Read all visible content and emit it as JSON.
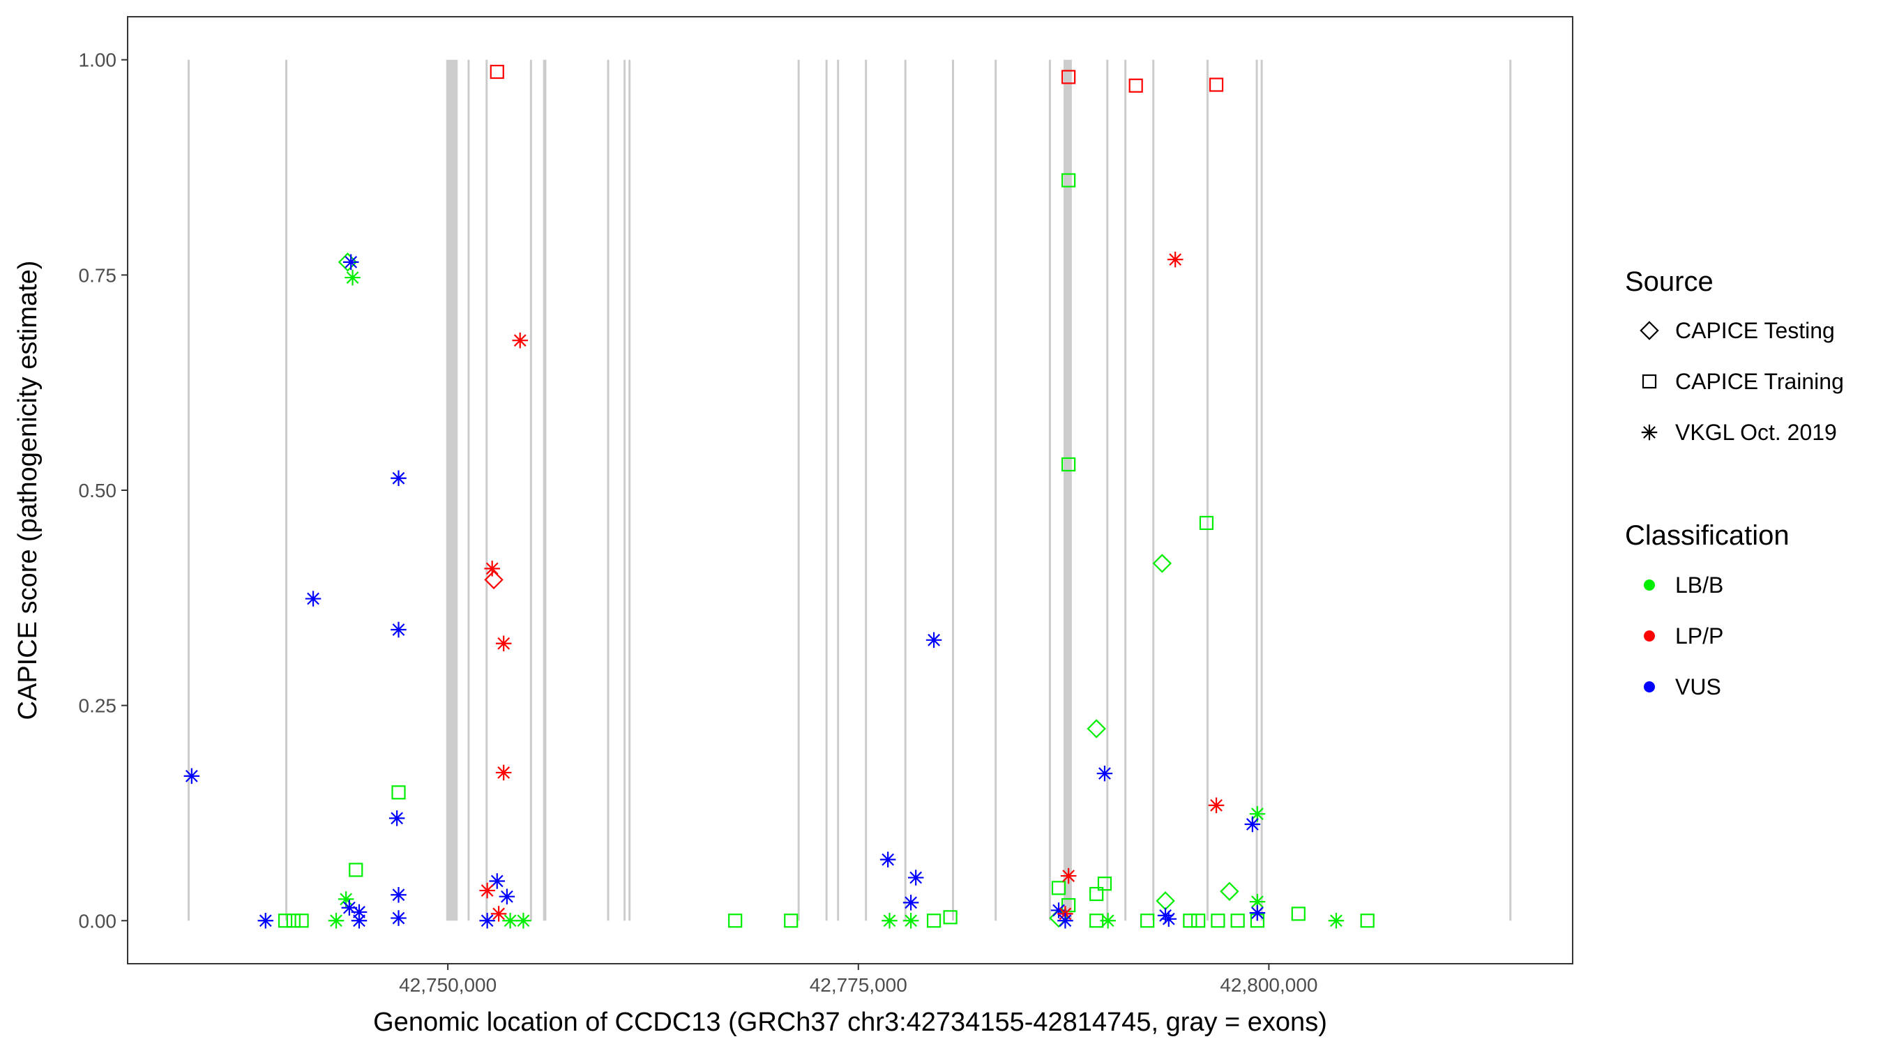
{
  "chart_data": {
    "type": "scatter",
    "title": "",
    "xlabel": "Genomic location of CCDC13 (GRCh37 chr3:42734155-42814745, gray = exons)",
    "ylabel": "CAPICE score (pathogenicity estimate)",
    "xlim": [
      42730500,
      42818500
    ],
    "ylim": [
      -0.05,
      1.05
    ],
    "x_ticks": [
      42750000,
      42775000,
      42800000
    ],
    "x_tick_labels": [
      "42,750,000",
      "42,775,000",
      "42,800,000"
    ],
    "y_ticks": [
      0,
      0.25,
      0.5,
      0.75,
      1.0
    ],
    "y_tick_labels": [
      "0.00",
      "0.25",
      "0.50",
      "0.75",
      "1.00"
    ],
    "grid": false,
    "exons": [
      [
        42734155,
        42734255
      ],
      [
        42740100,
        42740200
      ],
      [
        42749900,
        42750600
      ],
      [
        42751200,
        42751300
      ],
      [
        42752300,
        42752400
      ],
      [
        42755000,
        42755100
      ],
      [
        42755800,
        42756000
      ],
      [
        42759700,
        42759800
      ],
      [
        42760700,
        42760800
      ],
      [
        42761000,
        42761100
      ],
      [
        42771300,
        42771400
      ],
      [
        42773000,
        42773100
      ],
      [
        42773700,
        42773800
      ],
      [
        42775400,
        42775500
      ],
      [
        42777800,
        42777900
      ],
      [
        42780700,
        42780800
      ],
      [
        42783300,
        42783400
      ],
      [
        42786600,
        42786700
      ],
      [
        42787500,
        42788000
      ],
      [
        42790100,
        42790200
      ],
      [
        42791200,
        42791300
      ],
      [
        42792900,
        42793000
      ],
      [
        42796200,
        42796300
      ],
      [
        42799200,
        42799300
      ],
      [
        42799500,
        42799600
      ],
      [
        42814645,
        42814745
      ]
    ],
    "legend": {
      "source": {
        "title": "Source",
        "items": [
          {
            "key": "testing",
            "label": "CAPICE Testing",
            "shape": "diamond"
          },
          {
            "key": "training",
            "label": "CAPICE Training",
            "shape": "square"
          },
          {
            "key": "vkgl",
            "label": "VKGL Oct. 2019",
            "shape": "asterisk"
          }
        ]
      },
      "classification": {
        "title": "Classification",
        "items": [
          {
            "key": "lbb",
            "label": "LB/B",
            "color": "#00ee00"
          },
          {
            "key": "lpp",
            "label": "LP/P",
            "color": "#ff0000"
          },
          {
            "key": "vus",
            "label": "VUS",
            "color": "#0000ff"
          }
        ]
      }
    },
    "colors": {
      "lbb": "#00ee00",
      "lpp": "#ff0000",
      "vus": "#0000ff",
      "exon": "#cccccc"
    },
    "series": [
      {
        "name": "CAPICE Testing",
        "shape": "diamond",
        "points": [
          {
            "x": 42743900,
            "y": 0.765,
            "c": "lbb"
          },
          {
            "x": 42752800,
            "y": 0.396,
            "c": "lpp"
          },
          {
            "x": 42793500,
            "y": 0.415,
            "c": "lbb"
          },
          {
            "x": 42789500,
            "y": 0.223,
            "c": "lbb"
          },
          {
            "x": 42797600,
            "y": 0.034,
            "c": "lbb"
          },
          {
            "x": 42793700,
            "y": 0.023,
            "c": "lbb"
          },
          {
            "x": 42787200,
            "y": 0.003,
            "c": "lbb"
          }
        ]
      },
      {
        "name": "CAPICE Training",
        "shape": "square",
        "points": [
          {
            "x": 42753000,
            "y": 0.986,
            "c": "lpp"
          },
          {
            "x": 42787800,
            "y": 0.98,
            "c": "lpp"
          },
          {
            "x": 42791900,
            "y": 0.97,
            "c": "lpp"
          },
          {
            "x": 42796800,
            "y": 0.971,
            "c": "lpp"
          },
          {
            "x": 42787800,
            "y": 0.86,
            "c": "lbb"
          },
          {
            "x": 42787800,
            "y": 0.53,
            "c": "lbb"
          },
          {
            "x": 42796200,
            "y": 0.462,
            "c": "lbb"
          },
          {
            "x": 42747000,
            "y": 0.149,
            "c": "lbb"
          },
          {
            "x": 42744400,
            "y": 0.059,
            "c": "lbb"
          },
          {
            "x": 42787200,
            "y": 0.038,
            "c": "lbb"
          },
          {
            "x": 42790000,
            "y": 0.043,
            "c": "lbb"
          },
          {
            "x": 42789500,
            "y": 0.031,
            "c": "lbb"
          },
          {
            "x": 42787800,
            "y": 0.018,
            "c": "lbb"
          },
          {
            "x": 42780600,
            "y": 0.004,
            "c": "lbb"
          },
          {
            "x": 42801800,
            "y": 0.008,
            "c": "lbb"
          },
          {
            "x": 42740100,
            "y": 0.0,
            "c": "lbb"
          },
          {
            "x": 42740600,
            "y": 0.0,
            "c": "lbb"
          },
          {
            "x": 42741100,
            "y": 0.0,
            "c": "lbb"
          },
          {
            "x": 42767500,
            "y": 0.0,
            "c": "lbb"
          },
          {
            "x": 42770900,
            "y": 0.0,
            "c": "lbb"
          },
          {
            "x": 42779600,
            "y": 0.0,
            "c": "lbb"
          },
          {
            "x": 42789500,
            "y": 0.0,
            "c": "lbb"
          },
          {
            "x": 42792600,
            "y": 0.0,
            "c": "lbb"
          },
          {
            "x": 42795200,
            "y": 0.0,
            "c": "lbb"
          },
          {
            "x": 42795700,
            "y": 0.0,
            "c": "lbb"
          },
          {
            "x": 42796900,
            "y": 0.0,
            "c": "lbb"
          },
          {
            "x": 42798100,
            "y": 0.0,
            "c": "lbb"
          },
          {
            "x": 42799300,
            "y": 0.0,
            "c": "lbb"
          },
          {
            "x": 42806000,
            "y": 0.0,
            "c": "lbb"
          }
        ]
      },
      {
        "name": "VKGL Oct. 2019",
        "shape": "asterisk",
        "points": [
          {
            "x": 42744100,
            "y": 0.765,
            "c": "vus"
          },
          {
            "x": 42744200,
            "y": 0.747,
            "c": "lbb"
          },
          {
            "x": 42794300,
            "y": 0.768,
            "c": "lpp"
          },
          {
            "x": 42754400,
            "y": 0.674,
            "c": "lpp"
          },
          {
            "x": 42747000,
            "y": 0.514,
            "c": "vus"
          },
          {
            "x": 42752700,
            "y": 0.409,
            "c": "lpp"
          },
          {
            "x": 42741800,
            "y": 0.374,
            "c": "vus"
          },
          {
            "x": 42747000,
            "y": 0.338,
            "c": "vus"
          },
          {
            "x": 42779600,
            "y": 0.326,
            "c": "vus"
          },
          {
            "x": 42753400,
            "y": 0.322,
            "c": "lpp"
          },
          {
            "x": 42753400,
            "y": 0.172,
            "c": "lpp"
          },
          {
            "x": 42734400,
            "y": 0.168,
            "c": "vus"
          },
          {
            "x": 42790000,
            "y": 0.171,
            "c": "vus"
          },
          {
            "x": 42796800,
            "y": 0.134,
            "c": "lpp"
          },
          {
            "x": 42799300,
            "y": 0.124,
            "c": "lbb"
          },
          {
            "x": 42799000,
            "y": 0.112,
            "c": "vus"
          },
          {
            "x": 42746900,
            "y": 0.119,
            "c": "vus"
          },
          {
            "x": 42776800,
            "y": 0.071,
            "c": "vus"
          },
          {
            "x": 42778500,
            "y": 0.05,
            "c": "vus"
          },
          {
            "x": 42787800,
            "y": 0.052,
            "c": "lpp"
          },
          {
            "x": 42753000,
            "y": 0.046,
            "c": "vus"
          },
          {
            "x": 42752400,
            "y": 0.035,
            "c": "lpp"
          },
          {
            "x": 42753600,
            "y": 0.028,
            "c": "vus"
          },
          {
            "x": 42747000,
            "y": 0.03,
            "c": "vus"
          },
          {
            "x": 42743800,
            "y": 0.025,
            "c": "lbb"
          },
          {
            "x": 42778200,
            "y": 0.021,
            "c": "vus"
          },
          {
            "x": 42799300,
            "y": 0.022,
            "c": "lbb"
          },
          {
            "x": 42744000,
            "y": 0.015,
            "c": "vus"
          },
          {
            "x": 42744600,
            "y": 0.01,
            "c": "vus"
          },
          {
            "x": 42787200,
            "y": 0.012,
            "c": "vus"
          },
          {
            "x": 42787600,
            "y": 0.008,
            "c": "lpp"
          },
          {
            "x": 42799300,
            "y": 0.009,
            "c": "vus"
          },
          {
            "x": 42793700,
            "y": 0.006,
            "c": "vus"
          },
          {
            "x": 42753100,
            "y": 0.008,
            "c": "lpp"
          },
          {
            "x": 42738900,
            "y": 0.0,
            "c": "vus"
          },
          {
            "x": 42743200,
            "y": 0.0,
            "c": "lbb"
          },
          {
            "x": 42744600,
            "y": 0.0,
            "c": "vus"
          },
          {
            "x": 42747000,
            "y": 0.003,
            "c": "vus"
          },
          {
            "x": 42752400,
            "y": 0.0,
            "c": "vus"
          },
          {
            "x": 42753800,
            "y": 0.0,
            "c": "lbb"
          },
          {
            "x": 42754600,
            "y": 0.0,
            "c": "lbb"
          },
          {
            "x": 42776900,
            "y": 0.0,
            "c": "lbb"
          },
          {
            "x": 42778200,
            "y": 0.0,
            "c": "lbb"
          },
          {
            "x": 42787600,
            "y": 0.0,
            "c": "vus"
          },
          {
            "x": 42790200,
            "y": 0.0,
            "c": "lbb"
          },
          {
            "x": 42793900,
            "y": 0.002,
            "c": "vus"
          },
          {
            "x": 42804100,
            "y": 0.0,
            "c": "lbb"
          }
        ]
      }
    ]
  }
}
